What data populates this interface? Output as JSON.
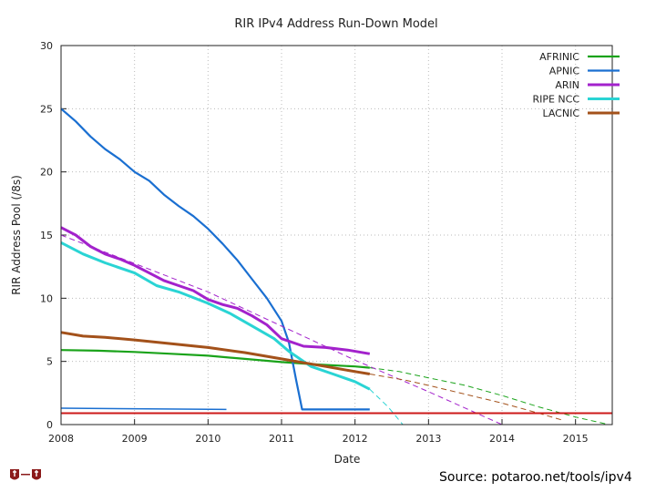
{
  "chart_data": {
    "type": "line",
    "title": "RIR IPv4 Address Run-Down Model",
    "xlabel": "Date",
    "ylabel": "RIR Address Pool (/8s)",
    "xlim": [
      2008,
      2015.5
    ],
    "ylim": [
      0,
      30
    ],
    "x_ticks": [
      "2008",
      "2009",
      "2010",
      "2011",
      "2012",
      "2013",
      "2014",
      "2015"
    ],
    "y_ticks": [
      "0",
      "5",
      "10",
      "15",
      "20",
      "25",
      "30"
    ],
    "grid": true,
    "legend_position": "top-right",
    "series": [
      {
        "name": "AFRINIC",
        "color": "#1aa31a",
        "width": 2.2,
        "actual": [
          [
            2008.0,
            5.9
          ],
          [
            2008.5,
            5.85
          ],
          [
            2009.0,
            5.75
          ],
          [
            2009.5,
            5.6
          ],
          [
            2010.0,
            5.45
          ],
          [
            2010.5,
            5.2
          ],
          [
            2011.0,
            4.95
          ],
          [
            2011.5,
            4.75
          ],
          [
            2012.0,
            4.6
          ],
          [
            2012.2,
            4.5
          ]
        ],
        "projection": [
          [
            2012.2,
            4.5
          ],
          [
            2012.6,
            4.2
          ],
          [
            2013.0,
            3.7
          ],
          [
            2013.5,
            3.1
          ],
          [
            2014.0,
            2.3
          ],
          [
            2014.5,
            1.4
          ],
          [
            2015.0,
            0.6
          ],
          [
            2015.45,
            0.0
          ]
        ]
      },
      {
        "name": "APNIC",
        "color": "#1a6fd1",
        "width": 2.2,
        "actual": [
          [
            2008.0,
            25.0
          ],
          [
            2008.2,
            24.0
          ],
          [
            2008.4,
            22.8
          ],
          [
            2008.6,
            21.8
          ],
          [
            2008.8,
            21.0
          ],
          [
            2009.0,
            20.0
          ],
          [
            2009.2,
            19.3
          ],
          [
            2009.4,
            18.2
          ],
          [
            2009.6,
            17.3
          ],
          [
            2009.8,
            16.5
          ],
          [
            2010.0,
            15.5
          ],
          [
            2010.2,
            14.3
          ],
          [
            2010.4,
            13.0
          ],
          [
            2010.6,
            11.5
          ],
          [
            2010.8,
            10.0
          ],
          [
            2011.0,
            8.2
          ],
          [
            2011.1,
            6.5
          ],
          [
            2011.2,
            3.5
          ],
          [
            2011.28,
            1.2
          ],
          [
            2012.2,
            1.2
          ]
        ],
        "projection": []
      },
      {
        "name": "ARIN",
        "color": "#a322cc",
        "width": 3,
        "actual": [
          [
            2008.0,
            15.6
          ],
          [
            2008.2,
            15.0
          ],
          [
            2008.4,
            14.1
          ],
          [
            2008.6,
            13.5
          ],
          [
            2008.8,
            13.1
          ],
          [
            2009.0,
            12.6
          ],
          [
            2009.2,
            12.0
          ],
          [
            2009.4,
            11.4
          ],
          [
            2009.6,
            11.0
          ],
          [
            2009.8,
            10.6
          ],
          [
            2010.0,
            9.9
          ],
          [
            2010.2,
            9.5
          ],
          [
            2010.4,
            9.2
          ],
          [
            2010.6,
            8.6
          ],
          [
            2010.8,
            7.9
          ],
          [
            2011.0,
            6.8
          ],
          [
            2011.3,
            6.2
          ],
          [
            2011.6,
            6.1
          ],
          [
            2011.9,
            5.9
          ],
          [
            2012.2,
            5.6
          ]
        ],
        "projection": [
          [
            2008.0,
            15.0
          ],
          [
            2010.0,
            10.5
          ],
          [
            2012.0,
            5.1
          ],
          [
            2013.0,
            2.6
          ],
          [
            2014.0,
            0.0
          ]
        ]
      },
      {
        "name": "RIPE NCC",
        "color": "#2ad4d4",
        "width": 3,
        "actual": [
          [
            2008.0,
            14.4
          ],
          [
            2008.3,
            13.5
          ],
          [
            2008.6,
            12.8
          ],
          [
            2009.0,
            12.0
          ],
          [
            2009.3,
            11.0
          ],
          [
            2009.6,
            10.5
          ],
          [
            2010.0,
            9.6
          ],
          [
            2010.3,
            8.8
          ],
          [
            2010.6,
            7.8
          ],
          [
            2010.9,
            6.8
          ],
          [
            2011.1,
            5.8
          ],
          [
            2011.4,
            4.6
          ],
          [
            2011.7,
            4.0
          ],
          [
            2012.0,
            3.4
          ],
          [
            2012.2,
            2.8
          ]
        ],
        "projection": [
          [
            2012.2,
            2.8
          ],
          [
            2012.45,
            1.4
          ],
          [
            2012.65,
            0.0
          ]
        ]
      },
      {
        "name": "LACNIC",
        "color": "#a3511a",
        "width": 3,
        "actual": [
          [
            2008.0,
            7.3
          ],
          [
            2008.3,
            7.0
          ],
          [
            2008.6,
            6.9
          ],
          [
            2009.0,
            6.7
          ],
          [
            2009.5,
            6.4
          ],
          [
            2010.0,
            6.1
          ],
          [
            2010.5,
            5.7
          ],
          [
            2011.0,
            5.2
          ],
          [
            2011.3,
            4.9
          ],
          [
            2011.6,
            4.6
          ],
          [
            2012.0,
            4.2
          ],
          [
            2012.2,
            4.0
          ]
        ],
        "projection": [
          [
            2012.2,
            4.0
          ],
          [
            2012.7,
            3.5
          ],
          [
            2013.0,
            3.1
          ],
          [
            2013.5,
            2.4
          ],
          [
            2014.0,
            1.7
          ],
          [
            2014.5,
            0.9
          ],
          [
            2014.85,
            0.3
          ]
        ]
      },
      {
        "name": "",
        "color": "#1a6fd1",
        "width": 1.5,
        "actual": [
          [
            2008.0,
            1.3
          ],
          [
            2010.25,
            1.2
          ]
        ],
        "projection": []
      },
      {
        "name": "",
        "color": "#cc1a1a",
        "width": 2,
        "actual": [
          [
            2008.0,
            0.9
          ],
          [
            2015.5,
            0.9
          ]
        ],
        "projection": []
      }
    ]
  },
  "source_note": "Source: potaroo.net/tools/ipv4",
  "logo": {
    "icon": "institution-shield-logo",
    "color": "#8b1a1a"
  }
}
